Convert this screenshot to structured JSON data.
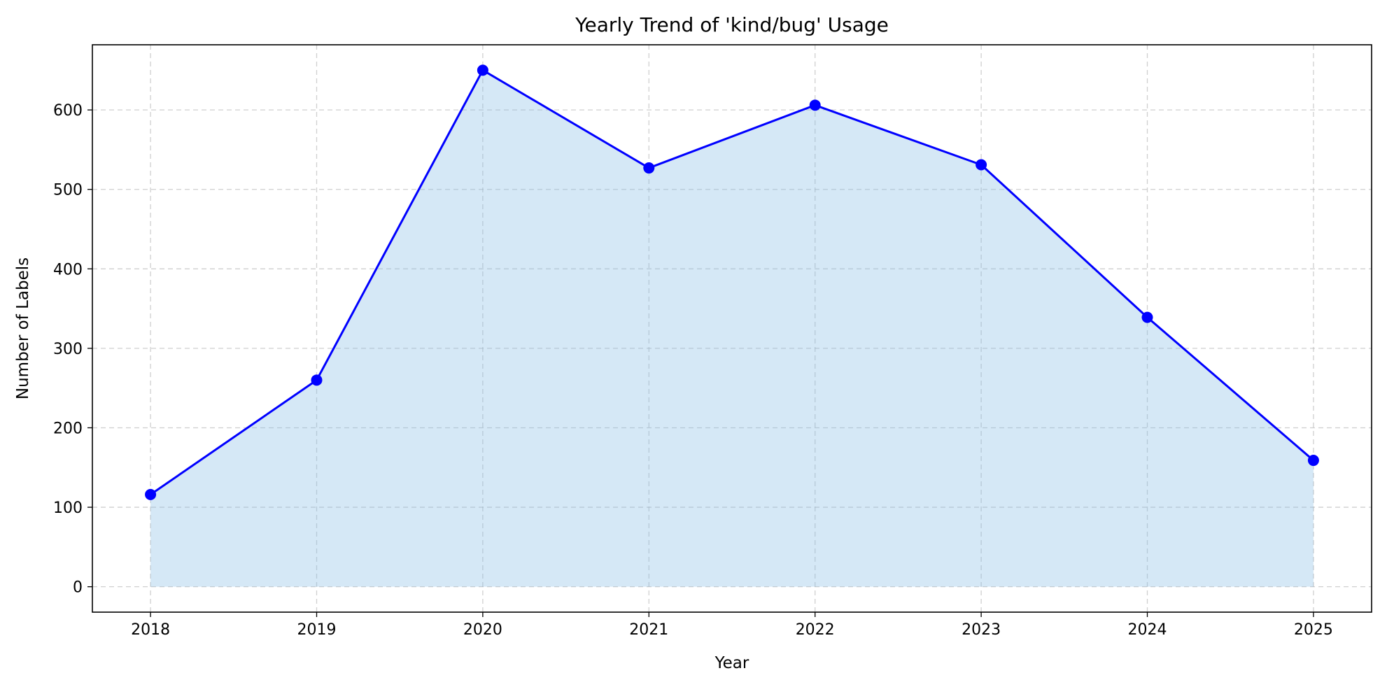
{
  "chart_data": {
    "type": "area",
    "title": "Yearly Trend of 'kind/bug' Usage",
    "xlabel": "Year",
    "ylabel": "Number of Labels",
    "x": [
      2018,
      2019,
      2020,
      2021,
      2022,
      2023,
      2024,
      2025
    ],
    "x_tick_labels": [
      "2018",
      "2019",
      "2020",
      "2021",
      "2022",
      "2023",
      "2024",
      "2025"
    ],
    "y_ticks": [
      0,
      100,
      200,
      300,
      400,
      500,
      600
    ],
    "y_tick_labels": [
      "0",
      "100",
      "200",
      "300",
      "400",
      "500",
      "600"
    ],
    "series": [
      {
        "values": [
          116,
          260,
          650,
          527,
          606,
          531,
          339,
          159
        ]
      }
    ],
    "xlim": [
      2017.65,
      2025.35
    ],
    "ylim": [
      -32,
      682
    ],
    "grid": true,
    "markers": true,
    "colors": {
      "line": "#0000ff",
      "marker": "#0000ff",
      "fill": "#87bde6"
    }
  }
}
